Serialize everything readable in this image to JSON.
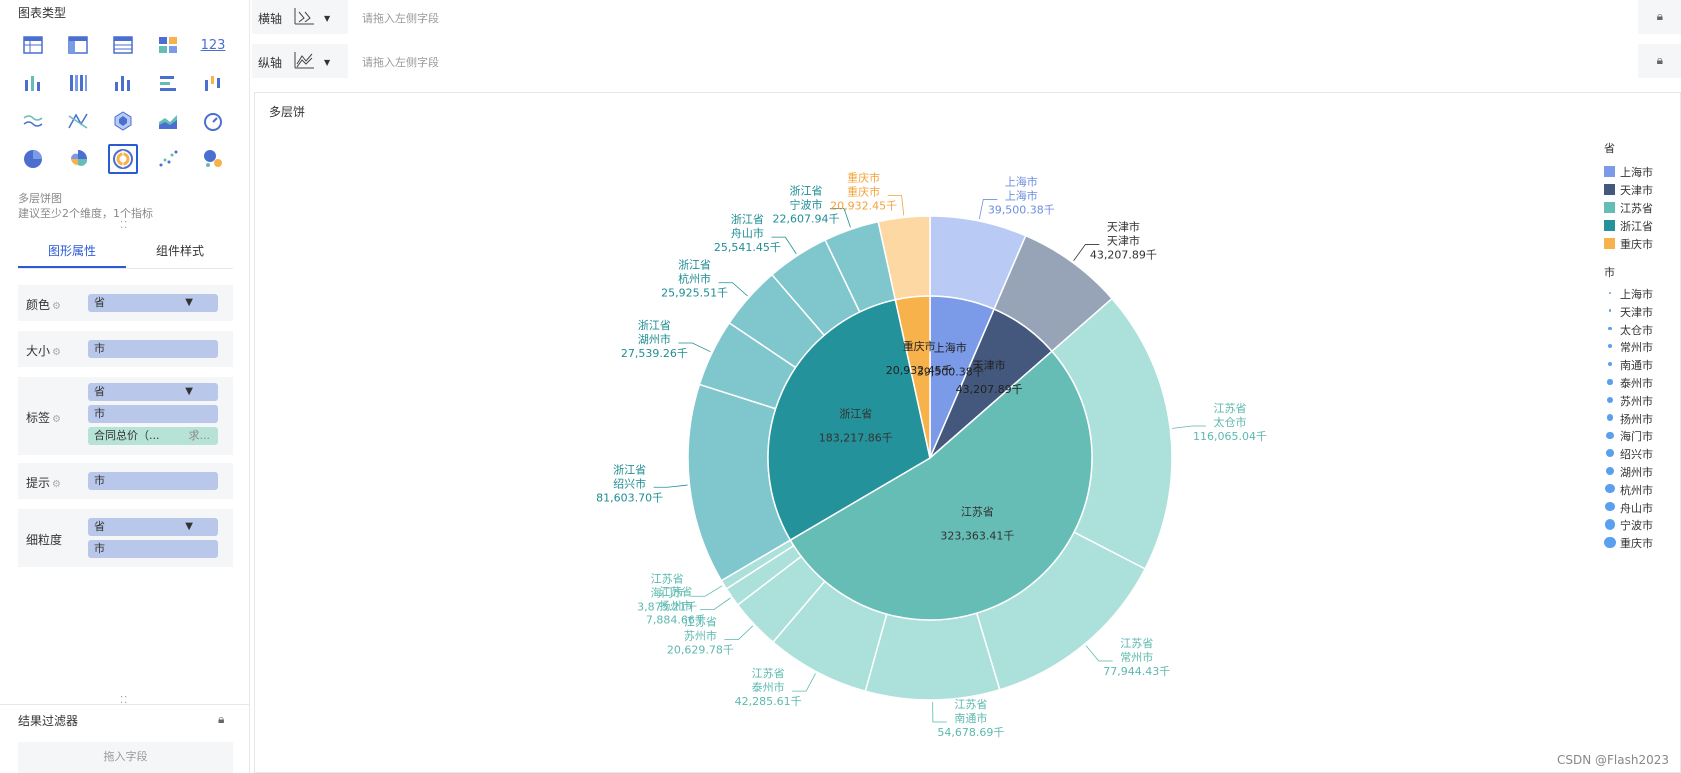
{
  "sidebar": {
    "chart_type_title": "图表类型",
    "kpi_label": "123",
    "selected_type_name": "多层饼图",
    "selected_type_hint": "建议至少2个维度，1个指标",
    "tabs": [
      "图形属性",
      "组件样式"
    ],
    "props": {
      "color": {
        "label": "颜色",
        "pills": [
          "省"
        ]
      },
      "size": {
        "label": "大小",
        "pills": [
          "市"
        ]
      },
      "tag": {
        "label": "标签",
        "pills": [
          "省",
          "市"
        ],
        "measure": "合同总价（...",
        "measure_agg": "求..."
      },
      "tooltip": {
        "label": "提示",
        "pills": [
          "市"
        ]
      },
      "granularity": {
        "label": "细粒度",
        "pills": [
          "省",
          "市"
        ]
      }
    },
    "filter_title": "结果过滤器",
    "filter_placeholder": "拖入字段"
  },
  "axes": {
    "x_label": "横轴",
    "y_label": "纵轴",
    "placeholder": "请拖入左侧字段"
  },
  "chart_title": "多层饼",
  "chart_data": {
    "type": "pie",
    "inner": [
      {
        "name": "上海市",
        "value": 39500.38,
        "label": "39,500.38千",
        "color": "#7b9be8"
      },
      {
        "name": "天津市",
        "value": 43207.89,
        "label": "43,207.89千",
        "color": "#44577d"
      },
      {
        "name": "江苏省",
        "value": 323363.41,
        "label": "323,363.41千",
        "color": "#66bdb5"
      },
      {
        "name": "浙江省",
        "value": 183217.86,
        "label": "183,217.86千",
        "color": "#24929a"
      },
      {
        "name": "重庆市",
        "value": 20932.45,
        "label": "20,932.45千",
        "color": "#f7b24c"
      }
    ],
    "outer": [
      {
        "province": "上海市",
        "city": "上海市",
        "value": 39500.38,
        "label": "39,500.38千",
        "color": "#b9cbf5"
      },
      {
        "province": "天津市",
        "city": "天津市",
        "value": 43207.89,
        "label": "43,207.89千",
        "color": "#97a3b6"
      },
      {
        "province": "江苏省",
        "city": "太仓市",
        "value": 116065.04,
        "label": "116,065.04千",
        "color": "#ace0da"
      },
      {
        "province": "江苏省",
        "city": "常州市",
        "value": 77944.43,
        "label": "77,944.43千",
        "color": "#ace0da"
      },
      {
        "province": "江苏省",
        "city": "南通市",
        "value": 54678.69,
        "label": "54,678.69千",
        "color": "#ace0da"
      },
      {
        "province": "江苏省",
        "city": "泰州市",
        "value": 42285.61,
        "label": "42,285.61千",
        "color": "#ace0da"
      },
      {
        "province": "江苏省",
        "city": "苏州市",
        "value": 20629.78,
        "label": "20,629.78千",
        "color": "#ace0da"
      },
      {
        "province": "江苏省",
        "city": "扬州市",
        "value": 7884.66,
        "label": "7,884.66千",
        "color": "#ace0da"
      },
      {
        "province": "江苏省",
        "city": "海门市",
        "value": 3875.21,
        "label": "3,875.21千",
        "color": "#ace0da"
      },
      {
        "province": "浙江省",
        "city": "绍兴市",
        "value": 81603.7,
        "label": "81,603.70千",
        "color": "#80c7cd"
      },
      {
        "province": "浙江省",
        "city": "湖州市",
        "value": 27539.26,
        "label": "27,539.26千",
        "color": "#80c7cd"
      },
      {
        "province": "浙江省",
        "city": "杭州市",
        "value": 25925.51,
        "label": "25,925.51千",
        "color": "#80c7cd"
      },
      {
        "province": "浙江省",
        "city": "舟山市",
        "value": 25541.45,
        "label": "25,541.45千",
        "color": "#80c7cd"
      },
      {
        "province": "浙江省",
        "city": "宁波市",
        "value": 22607.94,
        "label": "22,607.94千",
        "color": "#80c7cd"
      },
      {
        "province": "重庆市",
        "city": "重庆市",
        "value": 20932.45,
        "label": "20,932.45千",
        "color": "#fdd8a2"
      }
    ],
    "legend": {
      "province_title": "省",
      "province_items": [
        {
          "name": "上海市",
          "color": "#7b9be8"
        },
        {
          "name": "天津市",
          "color": "#44577d"
        },
        {
          "name": "江苏省",
          "color": "#66bdb5"
        },
        {
          "name": "浙江省",
          "color": "#24929a"
        },
        {
          "name": "重庆市",
          "color": "#f7b24c"
        }
      ],
      "city_title": "市",
      "city_items": [
        "上海市",
        "天津市",
        "太仓市",
        "常州市",
        "南通市",
        "泰州市",
        "苏州市",
        "扬州市",
        "海门市",
        "绍兴市",
        "湖州市",
        "杭州市",
        "舟山市",
        "宁波市",
        "重庆市"
      ],
      "position": "right"
    }
  },
  "watermark": "CSDN @Flash2023"
}
